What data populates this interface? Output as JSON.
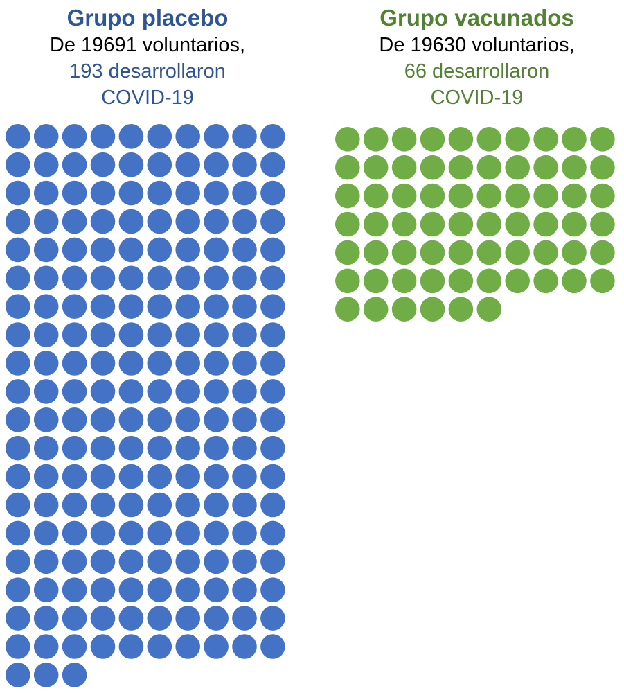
{
  "chart_data": [
    {
      "type": "pictogram",
      "title": "Grupo placebo",
      "subtitle_line1": "De 19691 voluntarios,",
      "subtitle_line2": "193 desarrollaron",
      "subtitle_line3": "COVID-19",
      "total_volunteers": 19691,
      "cases": 193,
      "columns": 10,
      "color": "#4472C4",
      "title_color": "#2F5597"
    },
    {
      "type": "pictogram",
      "title": "Grupo vacunados",
      "subtitle_line1": "De 19630 voluntarios,",
      "subtitle_line2": "66 desarrollaron",
      "subtitle_line3": "COVID-19",
      "total_volunteers": 19630,
      "cases": 66,
      "columns": 10,
      "color": "#70AD47",
      "title_color": "#548235"
    }
  ]
}
